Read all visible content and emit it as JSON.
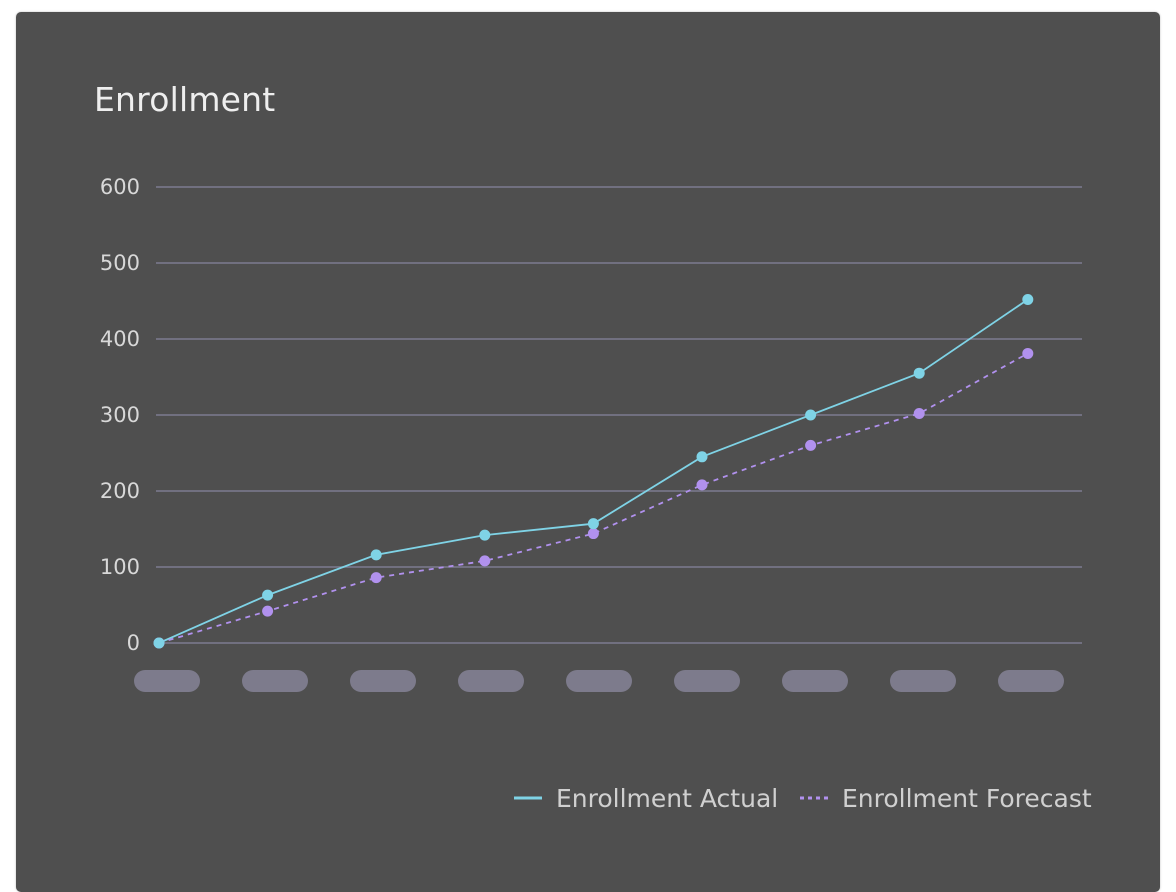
{
  "card": {
    "title": "Enrollment"
  },
  "chart_data": {
    "type": "line",
    "title": "Enrollment",
    "xlabel": "",
    "ylabel": "",
    "categories": [
      "",
      "",
      "",
      "",
      "",
      "",
      "",
      "",
      ""
    ],
    "y_ticks": [
      "0",
      "100",
      "200",
      "300",
      "400",
      "500",
      "600"
    ],
    "ylim": [
      0,
      600
    ],
    "grid": true,
    "legend_position": "bottom-right",
    "series": [
      {
        "name": "Enrollment Actual",
        "style": "solid",
        "color": "#7fd3e6",
        "values": [
          0,
          63,
          116,
          142,
          157,
          245,
          300,
          355,
          452
        ]
      },
      {
        "name": "Enrollment Forecast",
        "style": "dashed",
        "color": "#b191ee",
        "values": [
          0,
          42,
          86,
          108,
          144,
          208,
          260,
          302,
          381
        ]
      }
    ]
  },
  "colors": {
    "card_background": "#4f4f4f",
    "gridline": "#7d7b90",
    "category_placeholder": "#7d7b8c"
  }
}
